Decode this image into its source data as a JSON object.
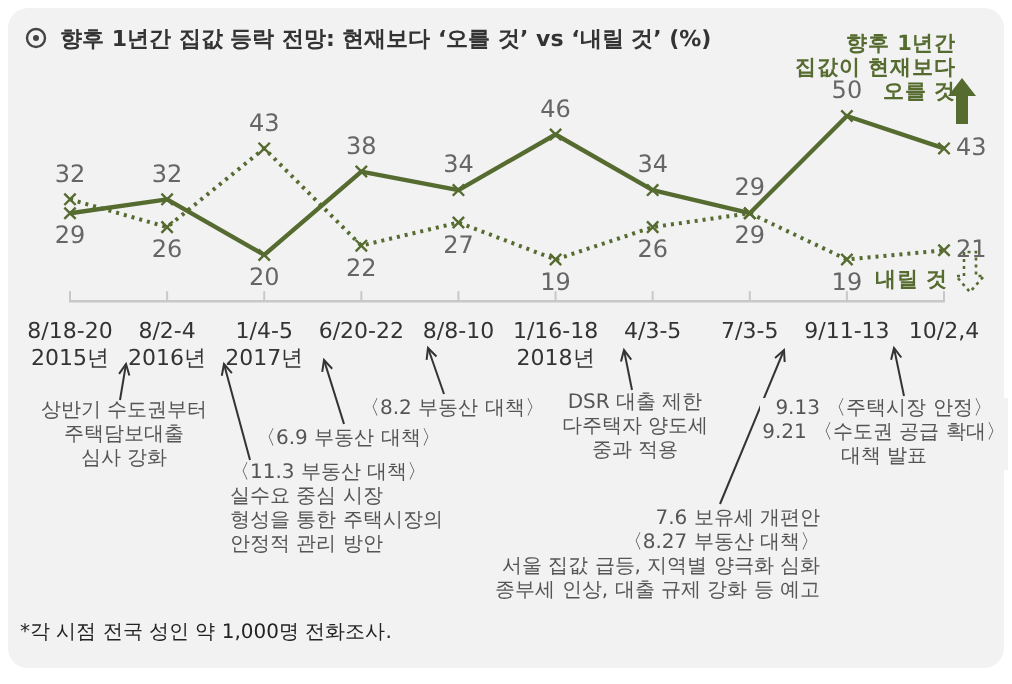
{
  "chart_data": {
    "type": "line",
    "title": "향후 1년간 집값 등락 전망: 현재보다 ‘오를 것’ vs ‘내릴 것’ (%)",
    "categories": [
      "8/18-20\n2015년",
      "8/2-4\n2016년",
      "1/4-5\n2017년",
      "6/20-22",
      "8/8-10",
      "1/16-18\n2018년",
      "4/3-5",
      "7/3-5",
      "9/11-13",
      "10/2,4"
    ],
    "series": [
      {
        "name": "향후 1년간\n집값이 현재보다\n오를 것",
        "color": "#566b30",
        "values": [
          29,
          32,
          20,
          38,
          34,
          46,
          34,
          29,
          50,
          43
        ],
        "line_style": "solid",
        "marker": "cross"
      },
      {
        "name": "내릴 것",
        "color": "#566b30",
        "values": [
          32,
          26,
          43,
          22,
          27,
          19,
          26,
          29,
          19,
          21
        ],
        "line_style": "dotted",
        "marker": "cross"
      }
    ],
    "tick_labels": "x",
    "data_labels": true,
    "legend": "right",
    "annotations": [
      "상반기 수도권부터\n주택담보대출\n심사 강화",
      "〈11.3 부동산 대책〉\n실수요 중심 시장\n형성을 통한 주택시장의\n안정적 관리 방안",
      "〈6.9 부동산 대책〉",
      "〈8.2 부동산 대책〉",
      "DSR 대출 제한\n다주택자 양도세\n중과 적용",
      "7.6  보유세 개편안\n〈8.27 부동산 대책〉\n서울 집값 급등, 지역별 양극화 심화\n종부세 인상, 대출 규제 강화 등 예고",
      "9.13 〈주택시장 안정〉\n9.21 〈수도권 공급 확대〉\n대책 발표",
      "*각 시점 전국 성인 약 1,000명 전화조사."
    ]
  }
}
